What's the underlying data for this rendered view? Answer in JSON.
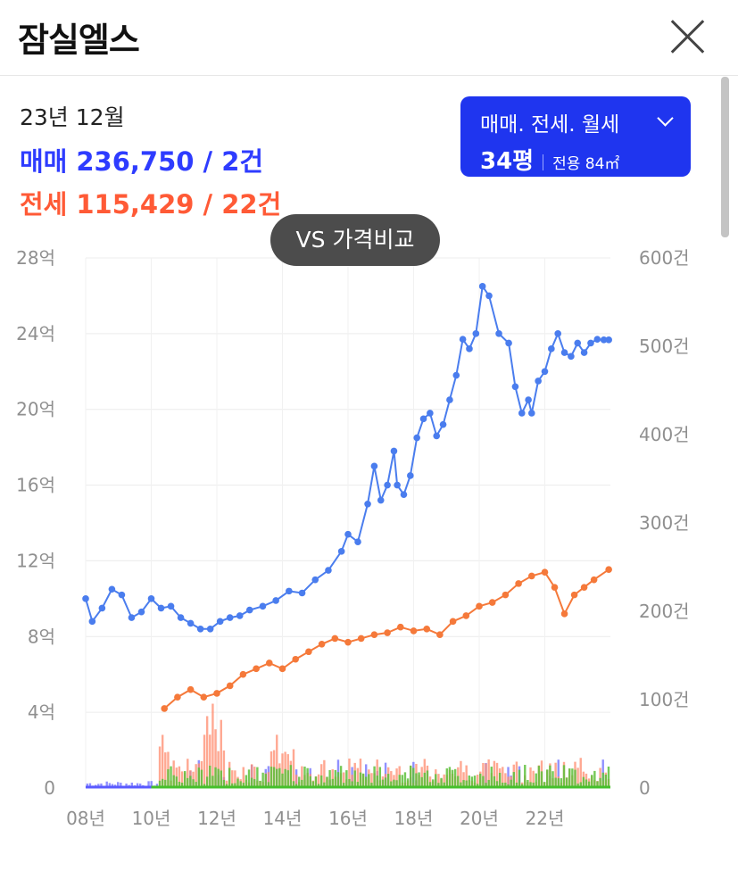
{
  "header": {
    "title": "잠실엘스"
  },
  "summary": {
    "date": "23년 12월",
    "sale_label": "매매",
    "sale_value": "236,750 / 2건",
    "jeonse_label": "전세",
    "jeonse_value": "115,429 / 22건"
  },
  "type_selector": {
    "types": "매매. 전세. 월세",
    "size": "34평",
    "area": "전용 84㎡"
  },
  "compare_button": {
    "label": "VS 가격비교"
  },
  "colors": {
    "sale": "#4a7dee",
    "jeonse": "#f5793a",
    "accent": "#1f35ef"
  },
  "chart_data": {
    "type": "line",
    "x_ticks": [
      "08년",
      "10년",
      "12년",
      "14년",
      "16년",
      "18년",
      "20년",
      "22년"
    ],
    "y_ticks": [
      "0",
      "4억",
      "8억",
      "12억",
      "16억",
      "20억",
      "24억",
      "28억"
    ],
    "y2_ticks": [
      "0",
      "100건",
      "200건",
      "300건",
      "400건",
      "500건",
      "600건"
    ],
    "xlim": [
      2008,
      2024
    ],
    "ylim": [
      0,
      28
    ],
    "y2lim": [
      0,
      600
    ],
    "grid": true,
    "series": [
      {
        "key": "sale",
        "x": [
          2008.0,
          2008.2,
          2008.5,
          2008.8,
          2009.1,
          2009.4,
          2009.7,
          2010.0,
          2010.3,
          2010.6,
          2010.9,
          2011.2,
          2011.5,
          2011.8,
          2012.1,
          2012.4,
          2012.7,
          2013.0,
          2013.4,
          2013.8,
          2014.2,
          2014.6,
          2015.0,
          2015.4,
          2015.8,
          2016.0,
          2016.3,
          2016.6,
          2016.8,
          2017.0,
          2017.2,
          2017.4,
          2017.5,
          2017.7,
          2017.9,
          2018.1,
          2018.3,
          2018.5,
          2018.7,
          2018.9,
          2019.1,
          2019.3,
          2019.5,
          2019.7,
          2019.9,
          2020.1,
          2020.3,
          2020.6,
          2020.9,
          2021.1,
          2021.3,
          2021.5,
          2021.6,
          2021.8,
          2022.0,
          2022.2,
          2022.4,
          2022.6,
          2022.8,
          2023.0,
          2023.2,
          2023.4,
          2023.6,
          2023.8,
          2023.95
        ],
        "values": [
          10.0,
          8.8,
          9.5,
          10.5,
          10.2,
          9.0,
          9.3,
          10.0,
          9.5,
          9.6,
          9.0,
          8.7,
          8.4,
          8.4,
          8.8,
          9.0,
          9.1,
          9.4,
          9.6,
          9.9,
          10.4,
          10.3,
          11.0,
          11.5,
          12.5,
          13.4,
          13.0,
          15.0,
          17.0,
          15.2,
          16.0,
          17.8,
          16.0,
          15.5,
          16.5,
          18.5,
          19.5,
          19.8,
          18.6,
          19.2,
          20.5,
          21.8,
          23.7,
          23.2,
          24.0,
          26.5,
          26.0,
          24.0,
          23.5,
          21.2,
          19.8,
          20.5,
          19.8,
          21.5,
          22.0,
          23.2,
          24.0,
          23.0,
          22.8,
          23.5,
          23.0,
          23.5,
          23.7,
          23.67,
          23.67
        ]
      },
      {
        "key": "jeonse",
        "x": [
          2010.4,
          2010.8,
          2011.2,
          2011.6,
          2012.0,
          2012.4,
          2012.8,
          2013.2,
          2013.6,
          2014.0,
          2014.4,
          2014.8,
          2015.2,
          2015.6,
          2016.0,
          2016.4,
          2016.8,
          2017.2,
          2017.6,
          2018.0,
          2018.4,
          2018.8,
          2019.2,
          2019.6,
          2020.0,
          2020.4,
          2020.8,
          2021.2,
          2021.6,
          2022.0,
          2022.3,
          2022.6,
          2022.9,
          2023.2,
          2023.5,
          2023.95
        ],
        "values": [
          4.2,
          4.8,
          5.2,
          4.8,
          5.0,
          5.4,
          6.0,
          6.3,
          6.6,
          6.3,
          6.8,
          7.2,
          7.6,
          7.9,
          7.7,
          7.9,
          8.1,
          8.2,
          8.5,
          8.3,
          8.4,
          8.1,
          8.8,
          9.1,
          9.6,
          9.8,
          10.2,
          10.8,
          11.2,
          11.4,
          10.6,
          9.2,
          10.2,
          10.6,
          11.0,
          11.54
        ]
      }
    ]
  }
}
